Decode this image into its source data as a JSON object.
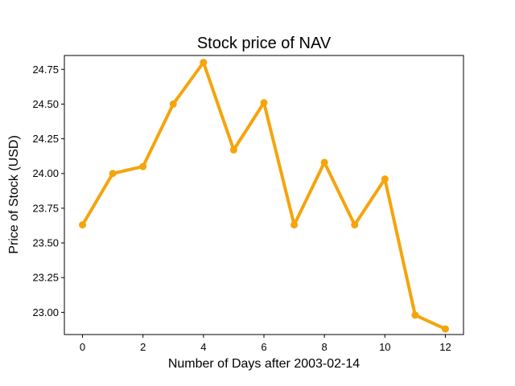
{
  "chart_data": {
    "type": "line",
    "title": "Stock price of NAV",
    "xlabel": "Number of Days after 2003-02-14",
    "ylabel": "Price of Stock (USD)",
    "x": [
      0,
      1,
      2,
      3,
      4,
      5,
      6,
      7,
      8,
      9,
      10,
      11,
      12
    ],
    "series": [
      {
        "values": [
          23.63,
          24.0,
          24.05,
          24.5,
          24.8,
          24.17,
          24.51,
          23.63,
          24.08,
          23.63,
          23.96,
          22.98,
          22.88
        ]
      }
    ],
    "xlim": [
      -0.6,
      12.6
    ],
    "ylim": [
      22.84,
      24.85
    ],
    "xticks": [
      0,
      2,
      4,
      6,
      8,
      10,
      12
    ],
    "xtick_labels": [
      "0",
      "2",
      "4",
      "6",
      "8",
      "10",
      "12"
    ],
    "yticks": [
      23.0,
      23.25,
      23.5,
      23.75,
      24.0,
      24.25,
      24.5,
      24.75
    ],
    "ytick_labels": [
      "23.00",
      "23.25",
      "23.50",
      "23.75",
      "24.00",
      "24.25",
      "24.50",
      "24.75"
    ],
    "line_color": "#f5a40c",
    "grid": false,
    "legend": "none"
  }
}
